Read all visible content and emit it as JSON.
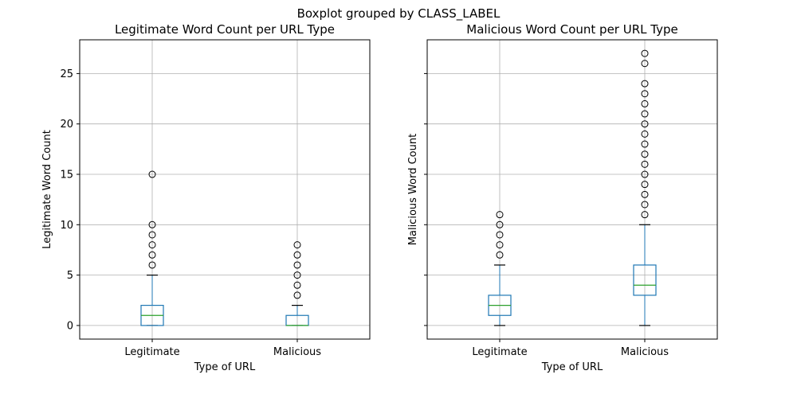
{
  "suptitle": "Boxplot grouped by CLASS_LABEL",
  "chart_data": [
    {
      "type": "box",
      "title": "Legitimate Word Count per URL Type",
      "xlabel": "Type of URL",
      "ylabel": "Legitimate Word Count",
      "categories": [
        "Legitimate",
        "Malicious"
      ],
      "ylim": [
        -1.35,
        28.35
      ],
      "yticks": [
        0,
        5,
        10,
        15,
        20,
        25
      ],
      "show_ytick_labels": true,
      "grid": true,
      "boxes": [
        {
          "whislo": 0,
          "q1": 0,
          "med": 1,
          "q3": 2,
          "whishi": 5,
          "fliers": [
            6,
            7,
            8,
            9,
            10,
            15
          ]
        },
        {
          "whislo": 0,
          "q1": 0,
          "med": 0,
          "q3": 1,
          "whishi": 2,
          "fliers": [
            3,
            4,
            5,
            6,
            7,
            8
          ]
        }
      ]
    },
    {
      "type": "box",
      "title": "Malicious Word Count per URL Type",
      "xlabel": "Type of URL",
      "ylabel": "Malicious Word Count",
      "categories": [
        "Legitimate",
        "Malicious"
      ],
      "ylim": [
        -1.35,
        28.35
      ],
      "yticks": [
        0,
        5,
        10,
        15,
        20,
        25
      ],
      "show_ytick_labels": false,
      "grid": true,
      "boxes": [
        {
          "whislo": 0,
          "q1": 1,
          "med": 2,
          "q3": 3,
          "whishi": 6,
          "fliers": [
            7,
            8,
            9,
            10,
            11
          ]
        },
        {
          "whislo": 0,
          "q1": 3,
          "med": 4,
          "q3": 6,
          "whishi": 10,
          "fliers": [
            11,
            12,
            13,
            14,
            15,
            16,
            17,
            18,
            19,
            20,
            21,
            22,
            23,
            24,
            26,
            27
          ]
        }
      ]
    }
  ],
  "colors": {
    "box": "#1f77b4",
    "median": "#2ca02c",
    "whisker_cap": "#000000",
    "grid": "#b0b0b0",
    "axes": "#000000"
  }
}
